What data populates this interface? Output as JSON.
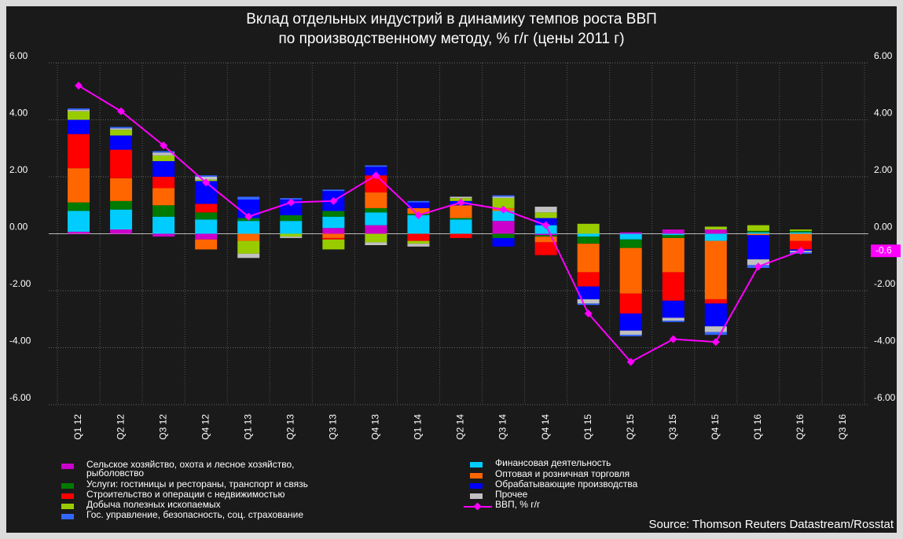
{
  "chart_data": {
    "type": "bar",
    "title": "Вклад отдельных индустрий в динамику темпов роста ВВП\nпо производственному методу, % г/г (цены 2011 г)",
    "source": "Source: Thomson Reuters Datastream/Rosstat",
    "categories": [
      "Q1 12",
      "Q2 12",
      "Q3 12",
      "Q4 12",
      "Q1 13",
      "Q2 13",
      "Q3 13",
      "Q4 13",
      "Q1 14",
      "Q2 14",
      "Q3 14",
      "Q4 14",
      "Q1 15",
      "Q2 15",
      "Q3 15",
      "Q4 15",
      "Q1 16",
      "Q2 16",
      "Q3 16"
    ],
    "series": [
      {
        "name": "Сельское хозяйство, охота и лесное хозяйство,\nрыболовство",
        "color": "#cc00cc",
        "values": [
          0.07,
          0.15,
          -0.1,
          -0.2,
          0,
          0,
          0.2,
          0.3,
          0,
          0,
          0.45,
          -0.05,
          0,
          0.05,
          0.15,
          0.15,
          0,
          0,
          null
        ]
      },
      {
        "name": "Услуги: гостиницы и рестораны, транспорт и связь",
        "color": "#007a00",
        "values": [
          0.3,
          0.3,
          0.4,
          0.25,
          0.1,
          0.2,
          0.2,
          0.15,
          0.05,
          0.05,
          -0.15,
          -0.05,
          -0.25,
          -0.3,
          -0.1,
          0,
          0.05,
          0.05,
          null
        ]
      },
      {
        "name": "Строительство и операции с недвижимостью",
        "color": "#ff0000",
        "values": [
          1.2,
          1.0,
          0.4,
          0.3,
          0,
          0,
          -0.05,
          0.6,
          -0.25,
          -0.15,
          0,
          -0.45,
          -0.5,
          -0.7,
          -1.0,
          -0.15,
          0,
          -0.3,
          null
        ]
      },
      {
        "name": "Добыча полезных ископаемых",
        "color": "#99cc00",
        "values": [
          0.3,
          0.2,
          0.2,
          0.05,
          -0.45,
          -0.1,
          -0.35,
          -0.3,
          -0.1,
          0.1,
          0.35,
          0.2,
          0.35,
          0,
          0,
          0.1,
          0.2,
          0.05,
          null
        ]
      },
      {
        "name": "Гос. управление, безопасность, соц. страхование",
        "color": "#3366ff",
        "values": [
          0.05,
          0.05,
          0.05,
          0.05,
          0.1,
          0.05,
          0.05,
          0.05,
          0.05,
          0,
          0.05,
          0,
          -0.05,
          -0.05,
          -0.05,
          -0.1,
          -0.1,
          -0.05,
          null
        ]
      },
      {
        "name": "Финансовая деятельность",
        "color": "#00ccff",
        "values": [
          0.73,
          0.7,
          0.6,
          0.5,
          0.45,
          0.45,
          0.4,
          0.45,
          0.65,
          0.5,
          0.35,
          0.3,
          -0.1,
          -0.2,
          -0.05,
          -0.25,
          0.05,
          0.05,
          null
        ]
      },
      {
        "name": "Оптовая и розничная торговля",
        "color": "#ff6600",
        "values": [
          1.2,
          0.8,
          0.6,
          -0.35,
          -0.25,
          0,
          -0.15,
          0.55,
          0.2,
          0.45,
          0.1,
          -0.2,
          -1.0,
          -1.6,
          -1.2,
          -2.05,
          -0.05,
          -0.25,
          null
        ]
      },
      {
        "name": "Обрабатывающие производства",
        "color": "#0000ff",
        "values": [
          0.5,
          0.5,
          0.55,
          0.8,
          0.65,
          0.55,
          0.7,
          0.3,
          0.2,
          0.15,
          -0.3,
          0.25,
          -0.45,
          -0.6,
          -0.6,
          -0.8,
          -0.85,
          -0.05,
          null
        ]
      },
      {
        "name": "Прочее",
        "color": "#c0c0c0",
        "values": [
          0.05,
          0.05,
          0.1,
          0.1,
          -0.15,
          -0.05,
          0,
          -0.1,
          -0.1,
          0.05,
          0.05,
          0.2,
          -0.15,
          -0.15,
          -0.1,
          -0.2,
          -0.2,
          -0.05,
          null
        ]
      },
      {
        "name": "ВВП, % г/г",
        "color": "#ff00ff",
        "type": "line",
        "values": [
          5.2,
          4.3,
          3.1,
          1.8,
          0.6,
          1.1,
          1.15,
          2.05,
          0.65,
          1.1,
          0.85,
          0.3,
          -2.8,
          -4.5,
          -3.7,
          -3.8,
          -1.15,
          -0.6,
          null
        ]
      }
    ],
    "ylim": [
      -6,
      6
    ],
    "yticks": [
      {
        "value": -6,
        "label": "-6.00"
      },
      {
        "value": -4,
        "label": "-4.00"
      },
      {
        "value": -2,
        "label": "-2.00"
      },
      {
        "value": 0,
        "label": "0.00"
      },
      {
        "value": 2,
        "label": "2.00"
      },
      {
        "value": 4,
        "label": "4.00"
      },
      {
        "value": 6,
        "label": "6.00"
      }
    ],
    "y2lim": [
      -6,
      6
    ],
    "y2ticks": [
      {
        "value": -6,
        "label": "-6.00"
      },
      {
        "value": -4,
        "label": "-4.00"
      },
      {
        "value": -2,
        "label": "-2.00"
      },
      {
        "value": 0,
        "label": "0.00"
      },
      {
        "value": 2,
        "label": "2.00"
      },
      {
        "value": 4,
        "label": "4.00"
      },
      {
        "value": 6,
        "label": "6.00"
      }
    ],
    "grid": true
  }
}
